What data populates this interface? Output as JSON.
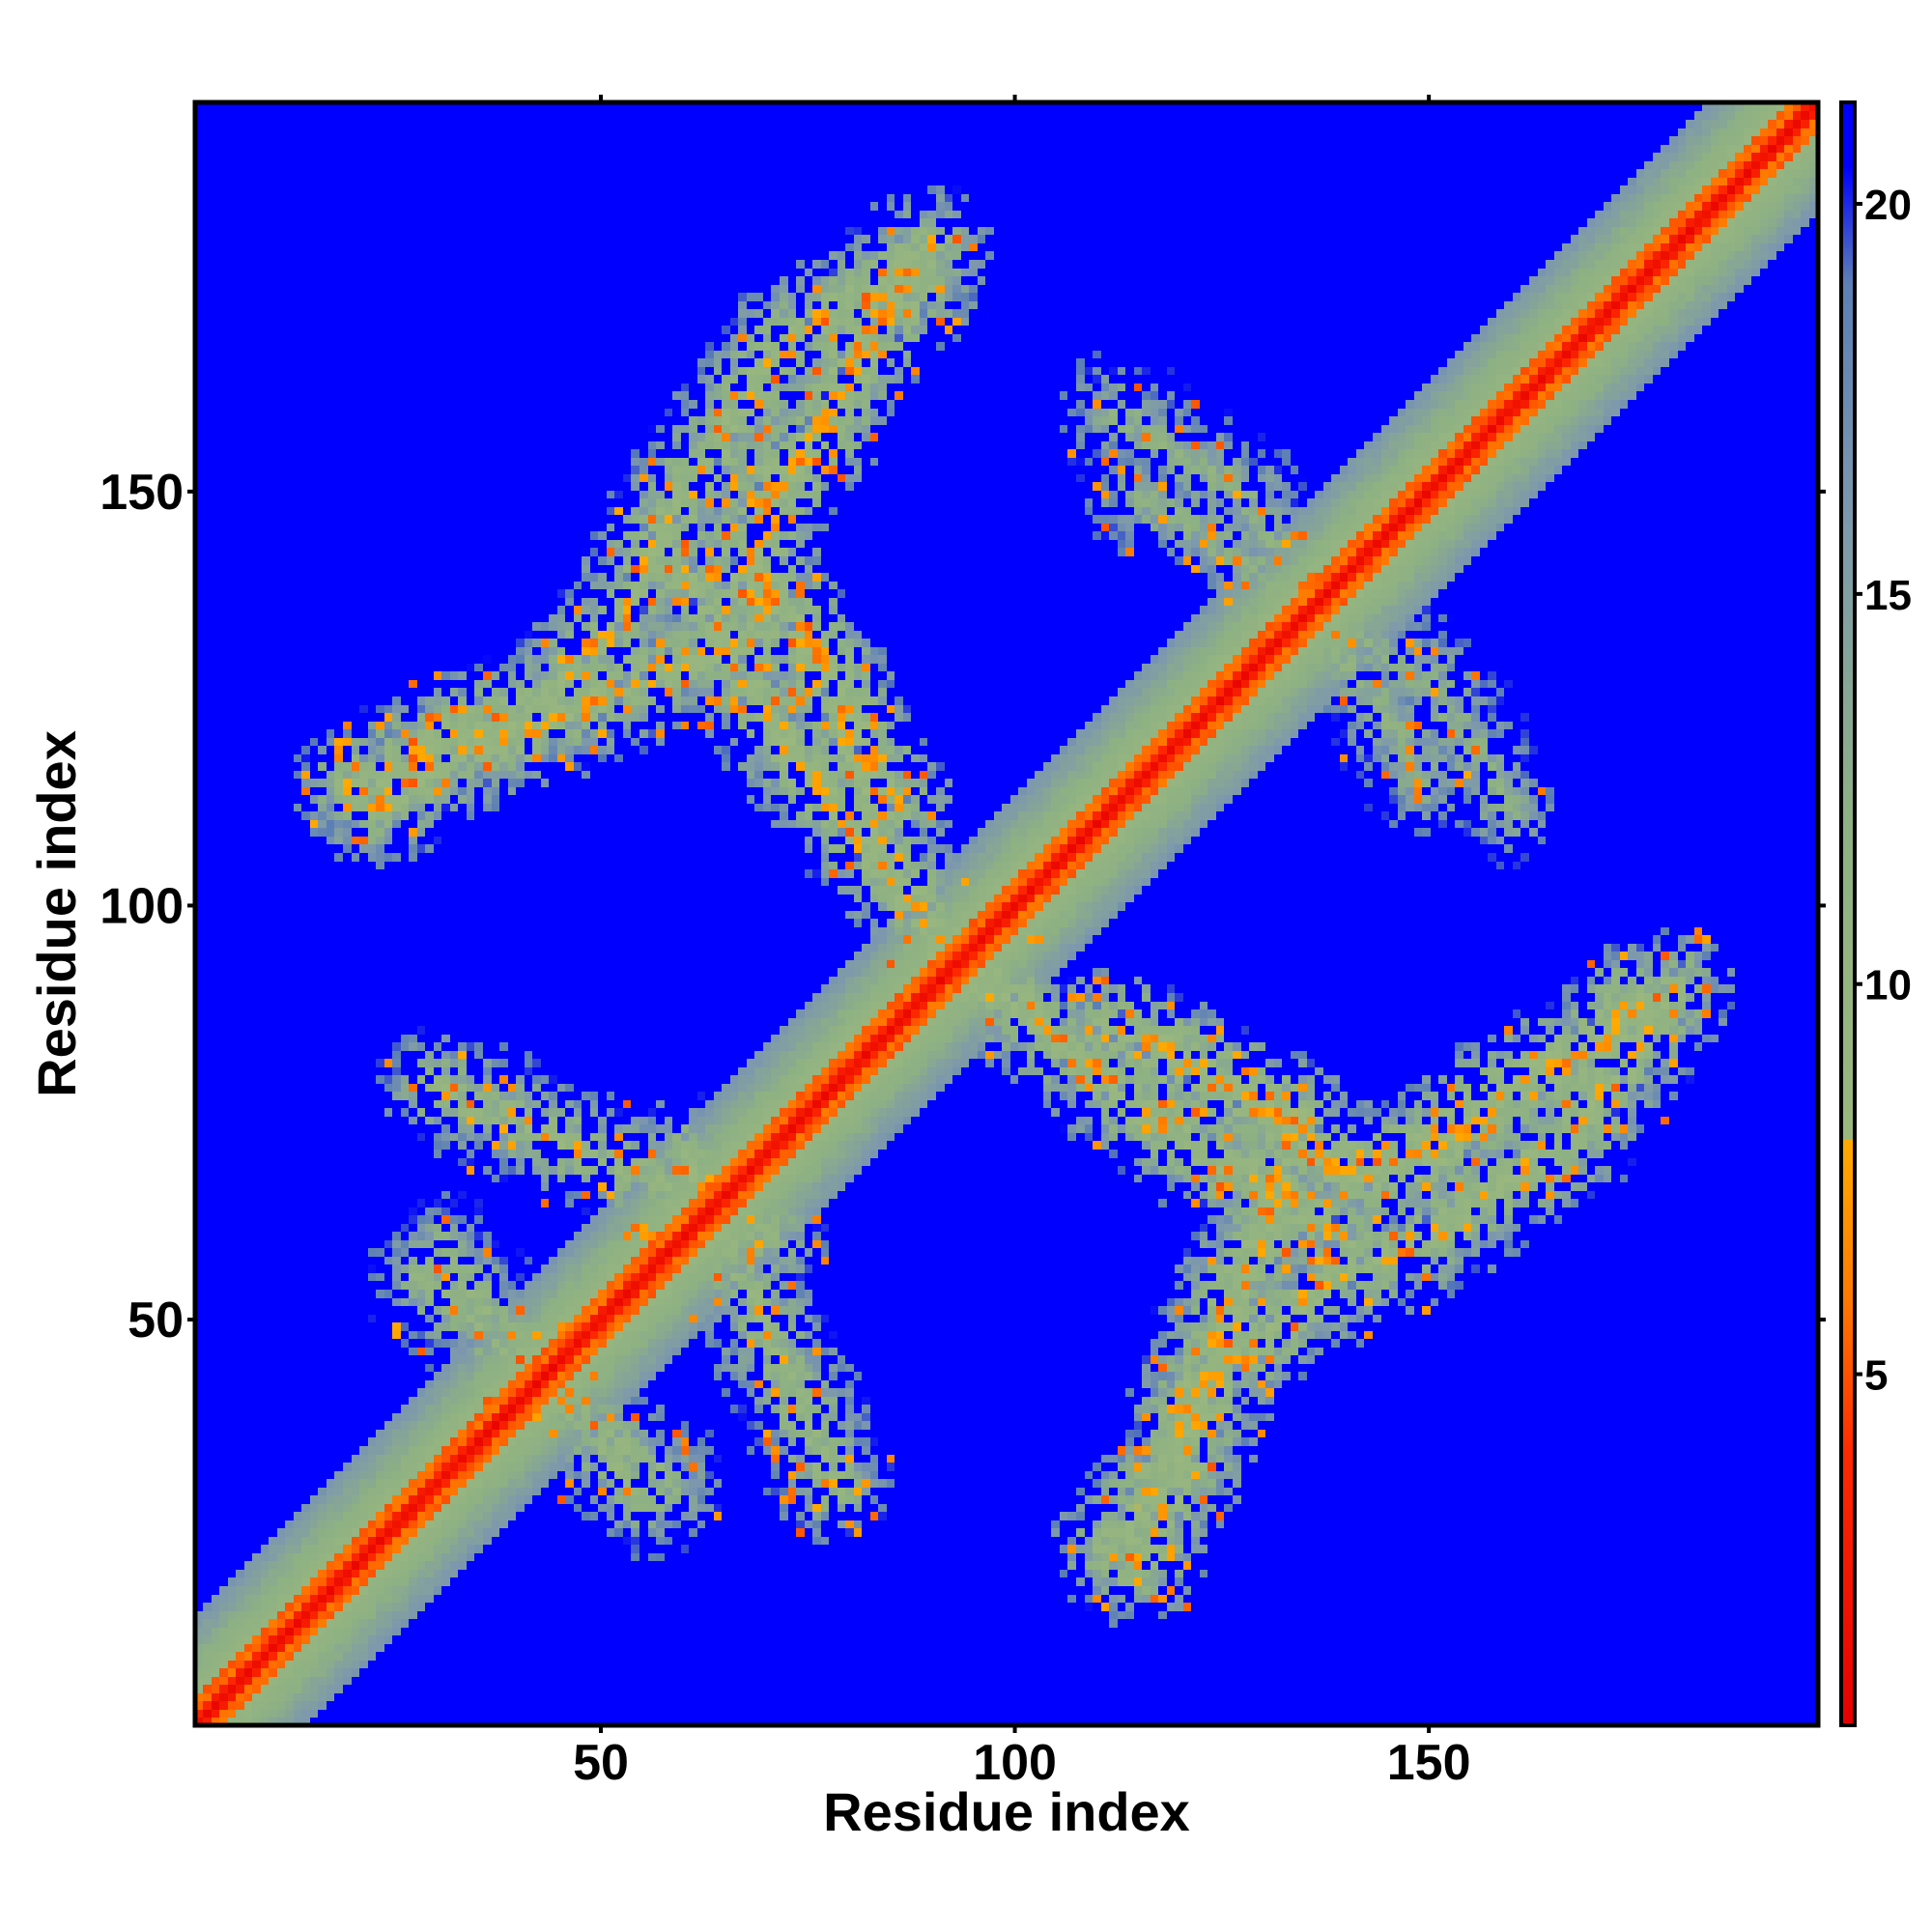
{
  "chart_data": {
    "type": "heatmap",
    "title": "",
    "xlabel": "Residue index",
    "ylabel": "Residue index",
    "xlim": [
      1,
      197
    ],
    "ylim": [
      1,
      197
    ],
    "x_ticks": [
      50,
      100,
      150
    ],
    "y_ticks": [
      50,
      100,
      150
    ],
    "x_tick_labels": [
      "50",
      "100",
      "150"
    ],
    "y_tick_labels": [
      "50",
      "100",
      "150"
    ],
    "grid": false,
    "colorbar": {
      "position": "right",
      "range": [
        0.5,
        21.3
      ],
      "ticks": [
        5,
        10,
        15,
        20
      ],
      "tick_labels": [
        "5",
        "10",
        "15",
        "20"
      ],
      "color_stops": [
        {
          "value": 0.5,
          "color": "#e60000"
        },
        {
          "value": 4.0,
          "color": "#ff2a00"
        },
        {
          "value": 6.0,
          "color": "#ff7a00"
        },
        {
          "value": 8.0,
          "color": "#ffaa00"
        },
        {
          "value": 8.01,
          "color": "#9ab77e"
        },
        {
          "value": 12.0,
          "color": "#8eb183"
        },
        {
          "value": 16.0,
          "color": "#7d98ad"
        },
        {
          "value": 19.0,
          "color": "#5c7fb5"
        },
        {
          "value": 20.5,
          "color": "#0000ff"
        },
        {
          "value": 21.3,
          "color": "#0000ff"
        }
      ]
    },
    "background_value": 21.3,
    "features": [
      {
        "kind": "diagonal",
        "description": "main diagonal i=j, near-contact distances",
        "from": 1,
        "to": 197
      },
      {
        "kind": "band",
        "path_x": [
          20,
          30,
          44,
          52,
          60,
          72,
          82,
          90
        ],
        "path_y": [
          115,
          120,
          125,
          135,
          150,
          168,
          175,
          180
        ],
        "value_center": 9
      },
      {
        "kind": "band",
        "path_x": [
          60,
          66,
          72,
          78,
          84,
          90,
          95
        ],
        "path_y": [
          140,
          130,
          120,
          112,
          105,
          98,
          90
        ],
        "value_center": 9
      },
      {
        "kind": "band",
        "path_x": [
          112,
          122,
          132,
          140,
          150,
          160,
          170,
          175
        ],
        "path_y": [
          85,
          80,
          75,
          68,
          70,
          78,
          82,
          88
        ],
        "value_center": 8
      },
      {
        "kind": "band",
        "path_x": [
          112,
          118,
          122,
          126,
          130,
          132
        ],
        "path_y": [
          22,
          32,
          42,
          52,
          60,
          68
        ],
        "value_center": 9
      },
      {
        "kind": "band",
        "path_x": [
          60,
          66,
          70,
          74,
          78
        ],
        "path_y": [
          70,
          58,
          48,
          40,
          30
        ],
        "value_center": 10
      },
      {
        "kind": "band",
        "path_x": [
          28,
          34,
          40,
          46,
          52,
          58
        ],
        "path_y": [
          55,
          50,
          45,
          40,
          35,
          30
        ],
        "value_center": 11
      },
      {
        "kind": "band",
        "path_x": [
          112,
          120,
          128,
          136,
          144,
          150
        ],
        "path_y": [
          160,
          155,
          150,
          135,
          125,
          115
        ],
        "value_center": 12
      }
    ]
  }
}
